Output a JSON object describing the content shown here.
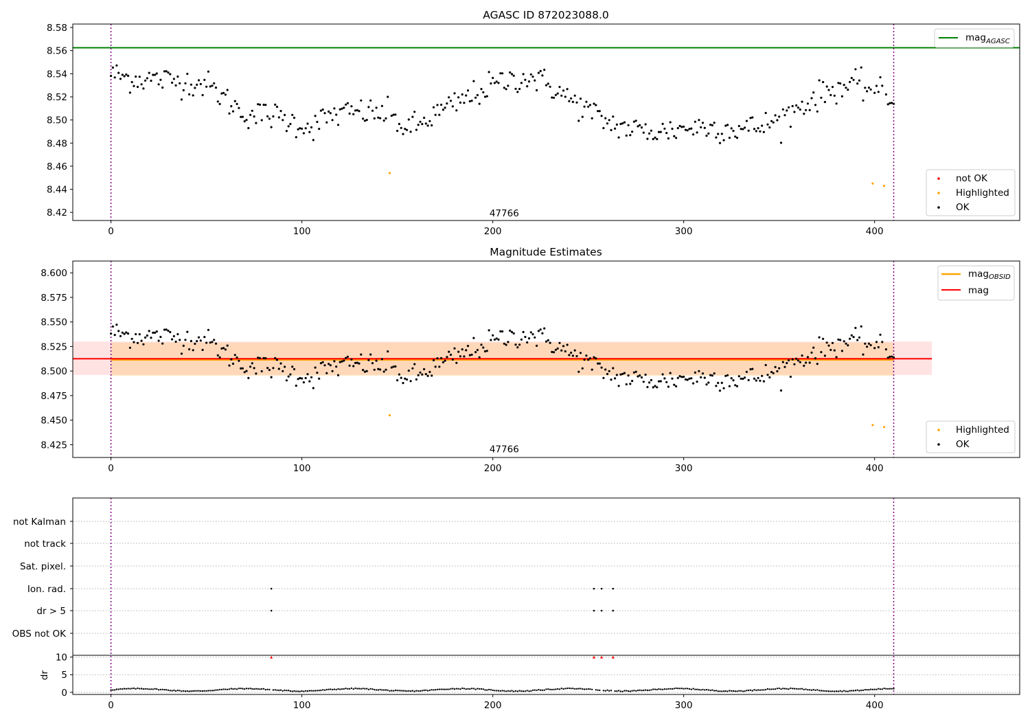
{
  "chart_data": [
    {
      "type": "scatter",
      "title": "AGASC ID 872023088.0",
      "xlim": [
        -20,
        476
      ],
      "ylim": [
        8.413,
        8.583
      ],
      "xticks": [
        "0",
        "100",
        "200",
        "300",
        "400"
      ],
      "yticks": [
        "8.42",
        "8.44",
        "8.46",
        "8.48",
        "8.50",
        "8.52",
        "8.54",
        "8.56",
        "8.58"
      ],
      "annotation": "47766",
      "annotation_x": 206,
      "annotation_y": 8.419,
      "vlines": [
        0,
        410
      ],
      "hline_mag_agasc": 8.5625,
      "legend_top": {
        "label": "mag",
        "sub": "AGASC",
        "position": "upper-right",
        "color": "#008000"
      },
      "legend_bottom": {
        "entries": [
          {
            "label": "not OK",
            "color": "#ff0000"
          },
          {
            "label": "Highlighted",
            "color": "#ffa500"
          },
          {
            "label": "OK",
            "color": "#000000"
          }
        ],
        "position": "lower-right"
      },
      "highlighted_points": [
        [
          146,
          8.454
        ],
        [
          399,
          8.445
        ],
        [
          405,
          8.443
        ]
      ],
      "ok_series_knots": [
        [
          0,
          8.54
        ],
        [
          10,
          8.536
        ],
        [
          25,
          8.535
        ],
        [
          40,
          8.533
        ],
        [
          50,
          8.531
        ],
        [
          60,
          8.518
        ],
        [
          70,
          8.505
        ],
        [
          85,
          8.504
        ],
        [
          95,
          8.498
        ],
        [
          105,
          8.494
        ],
        [
          115,
          8.504
        ],
        [
          130,
          8.507
        ],
        [
          145,
          8.505
        ],
        [
          155,
          8.492
        ],
        [
          162,
          8.496
        ],
        [
          170,
          8.505
        ],
        [
          180,
          8.513
        ],
        [
          190,
          8.522
        ],
        [
          200,
          8.53
        ],
        [
          210,
          8.535
        ],
        [
          220,
          8.537
        ],
        [
          230,
          8.53
        ],
        [
          240,
          8.518
        ],
        [
          250,
          8.508
        ],
        [
          260,
          8.498
        ],
        [
          270,
          8.493
        ],
        [
          280,
          8.49
        ],
        [
          290,
          8.49
        ],
        [
          300,
          8.493
        ],
        [
          310,
          8.494
        ],
        [
          320,
          8.493
        ],
        [
          330,
          8.492
        ],
        [
          340,
          8.494
        ],
        [
          350,
          8.5
        ],
        [
          360,
          8.511
        ],
        [
          370,
          8.52
        ],
        [
          380,
          8.528
        ],
        [
          390,
          8.53
        ],
        [
          400,
          8.527
        ],
        [
          410,
          8.515
        ]
      ]
    },
    {
      "type": "scatter",
      "title": "Magnitude Estimates",
      "xlim": [
        -20,
        476
      ],
      "ylim": [
        8.412,
        8.612
      ],
      "xticks": [
        "0",
        "100",
        "200",
        "300",
        "400"
      ],
      "yticks": [
        "8.425",
        "8.450",
        "8.475",
        "8.500",
        "8.525",
        "8.550",
        "8.575",
        "8.600"
      ],
      "annotation": "47766",
      "annotation_x": 206,
      "annotation_y": 8.42,
      "vlines": [
        0,
        410
      ],
      "mag": 8.5125,
      "mag_band": [
        8.496,
        8.53
      ],
      "mag_obsid": 8.5115,
      "mag_obsid_band": [
        8.495,
        8.529
      ],
      "legend_top": {
        "entries": [
          {
            "label": "mag",
            "sub": "OBSID",
            "color": "#ffa500"
          },
          {
            "label": "mag",
            "sub": "",
            "color": "#ff0000"
          }
        ],
        "position": "upper-right"
      },
      "legend_bottom": {
        "entries": [
          {
            "label": "Highlighted",
            "color": "#ffa500"
          },
          {
            "label": "OK",
            "color": "#000000"
          }
        ],
        "position": "lower-right"
      },
      "highlighted_points": [
        [
          146,
          8.455
        ],
        [
          399,
          8.445
        ],
        [
          405,
          8.443
        ]
      ]
    },
    {
      "type": "scatter",
      "xlim": [
        -20,
        476
      ],
      "categories": [
        "not Kalman",
        "not track",
        "Sat. pixel.",
        "Ion. rad.",
        "dr > 5",
        "OBS not OK"
      ],
      "flag_points": {
        "Ion. rad.": [
          84,
          253,
          257,
          263
        ],
        "dr > 5": [
          84,
          253,
          257,
          263
        ]
      },
      "vlines": [
        0,
        410
      ]
    },
    {
      "type": "scatter",
      "xlim": [
        -20,
        476
      ],
      "ylim": [
        -0.6,
        10.5
      ],
      "ylabel": "dr",
      "xticks": [
        "0",
        "100",
        "200",
        "300",
        "400"
      ],
      "yticks": [
        "0",
        "5",
        "10"
      ],
      "capped_points_x": [
        84,
        253,
        257,
        263
      ],
      "capped_value": 10,
      "vlines": [
        0,
        410
      ]
    }
  ]
}
